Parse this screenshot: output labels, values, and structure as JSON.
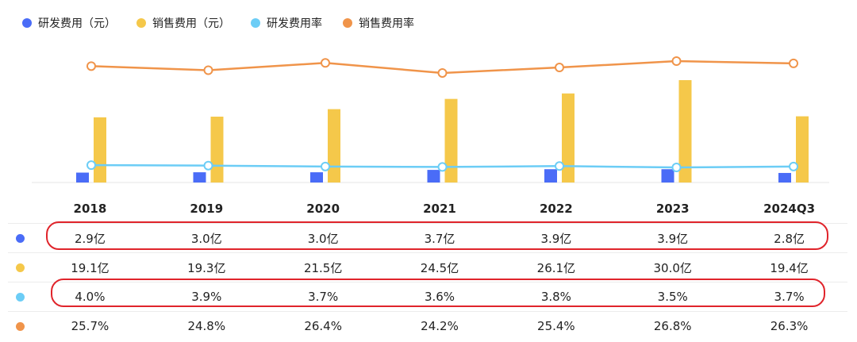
{
  "legend": [
    {
      "label": "研发费用（元）",
      "color": "#4a6cf7"
    },
    {
      "label": "销售费用（元）",
      "color": "#f5c84a"
    },
    {
      "label": "研发费用率",
      "color": "#6ccdf6"
    },
    {
      "label": "销售费用率",
      "color": "#f0944a"
    }
  ],
  "chart_data": {
    "type": "bar",
    "categories": [
      "2018",
      "2019",
      "2020",
      "2021",
      "2022",
      "2023",
      "2024Q3"
    ],
    "series": [
      {
        "name": "研发费用（元）",
        "kind": "bar",
        "color": "#4a6cf7",
        "values": [
          2.9,
          3.0,
          3.0,
          3.7,
          3.9,
          3.9,
          2.8
        ]
      },
      {
        "name": "销售费用（元）",
        "kind": "bar",
        "color": "#f5c84a",
        "values": [
          19.1,
          19.3,
          21.5,
          24.5,
          26.1,
          30.0,
          19.4
        ]
      },
      {
        "name": "研发费用率",
        "kind": "line",
        "color": "#6ccdf6",
        "values": [
          4.0,
          3.9,
          3.7,
          3.6,
          3.8,
          3.5,
          3.7
        ]
      },
      {
        "name": "销售费用率",
        "kind": "line",
        "color": "#f0944a",
        "values": [
          25.7,
          24.8,
          26.4,
          24.2,
          25.4,
          26.8,
          26.3
        ]
      }
    ]
  },
  "table": {
    "headers": [
      "2018",
      "2019",
      "2020",
      "2021",
      "2022",
      "2023",
      "2024Q3"
    ],
    "rows": [
      {
        "color": "#4a6cf7",
        "cells": [
          "2.9亿",
          "3.0亿",
          "3.0亿",
          "3.7亿",
          "3.9亿",
          "3.9亿",
          "2.8亿"
        ]
      },
      {
        "color": "#f5c84a",
        "cells": [
          "19.1亿",
          "19.3亿",
          "21.5亿",
          "24.5亿",
          "26.1亿",
          "30.0亿",
          "19.4亿"
        ]
      },
      {
        "color": "#6ccdf6",
        "cells": [
          "4.0%",
          "3.9%",
          "3.7%",
          "3.6%",
          "3.8%",
          "3.5%",
          "3.7%"
        ]
      },
      {
        "color": "#f0944a",
        "cells": [
          "25.7%",
          "24.8%",
          "26.4%",
          "24.2%",
          "25.4%",
          "26.8%",
          "26.3%"
        ]
      }
    ]
  },
  "highlight_color": "#e0242b"
}
